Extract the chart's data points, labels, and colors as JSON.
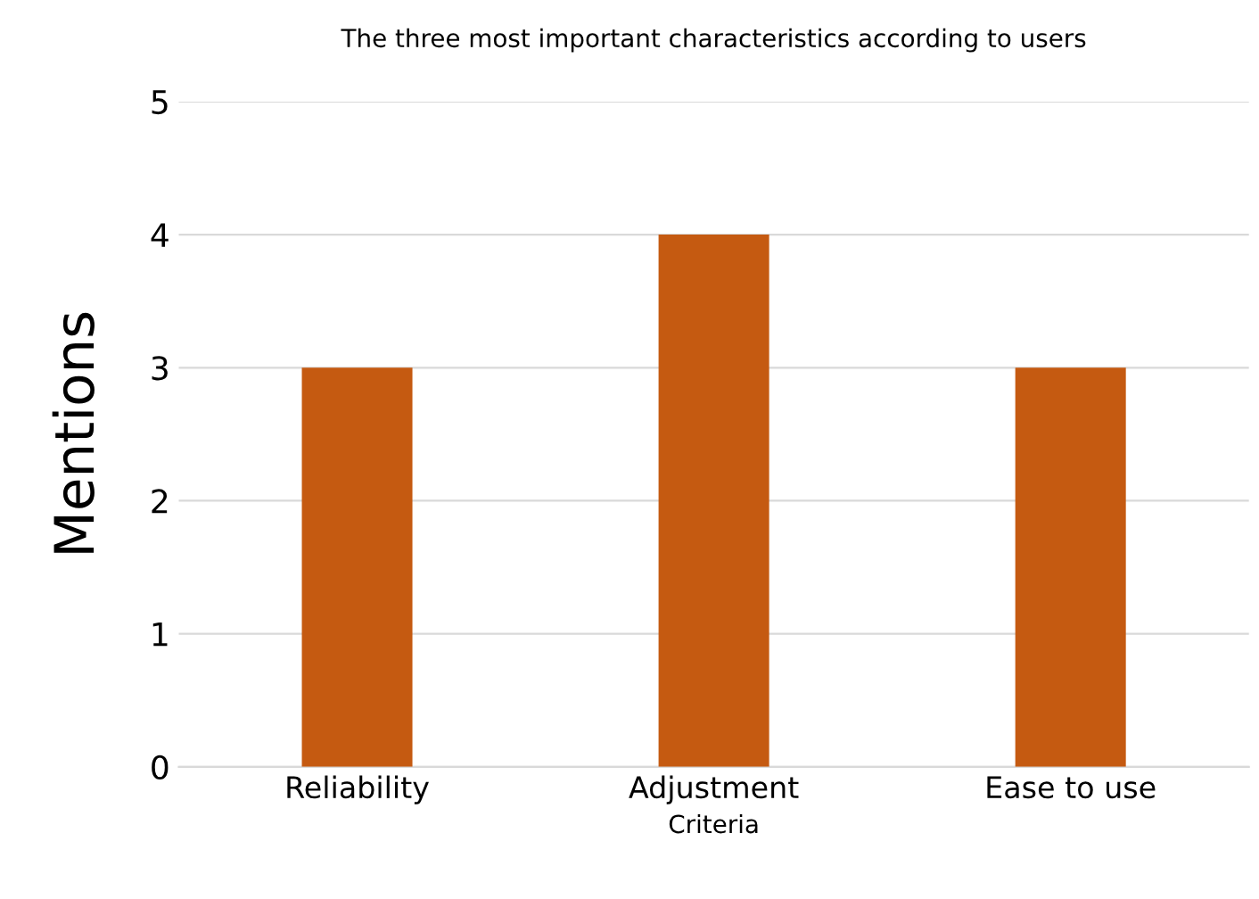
{
  "chart_data": {
    "type": "bar",
    "title": "The three most important characteristics according to users",
    "xlabel": "Criteria",
    "ylabel": "Mentions",
    "categories": [
      "Reliability",
      "Adjustment",
      "Ease to use"
    ],
    "series": [
      {
        "color": "#c55a11",
        "values": [
          3,
          4,
          3
        ]
      }
    ],
    "ylim": [
      0,
      5
    ],
    "yticks": [
      0,
      1,
      2,
      3,
      4,
      5
    ],
    "grid": "y",
    "legend": false
  }
}
